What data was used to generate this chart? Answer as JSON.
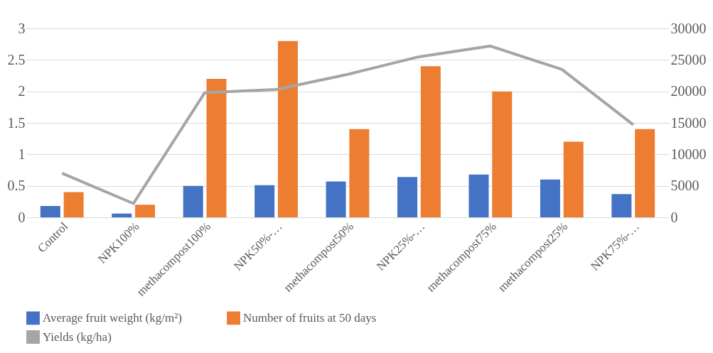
{
  "chart_data": {
    "type": "bar",
    "categories": [
      "Control",
      "NPK100%",
      "methacompost100%",
      "NPK50%-…",
      "methacompost50%",
      "NPK25%-…",
      "methacompost75%",
      "methacompost25%",
      "NPK75%-…"
    ],
    "series": [
      {
        "name": "Average fruit weight (kg/m²)",
        "color": "#4472c4",
        "values": [
          0.18,
          0.06,
          0.5,
          0.51,
          0.57,
          0.64,
          0.68,
          0.6,
          0.37
        ]
      },
      {
        "name": "Number of fruits at 50 days",
        "color": "#ed7d31",
        "values": [
          0.4,
          0.2,
          2.2,
          2.8,
          1.4,
          2.4,
          2.0,
          1.2,
          1.4
        ]
      },
      {
        "name": "Yields (kg/ha)",
        "color": "#a5a5a5",
        "type": "line",
        "axis": "y2",
        "values": [
          7000,
          2200,
          19800,
          20300,
          22700,
          25500,
          27200,
          23500,
          14700
        ]
      }
    ],
    "ylim": [
      0,
      3
    ],
    "yticks": [
      0,
      0.5,
      1,
      1.5,
      2,
      2.5,
      3
    ],
    "y2lim": [
      0,
      30000
    ],
    "y2ticks": [
      0,
      5000,
      10000,
      15000,
      20000,
      25000,
      30000
    ],
    "grid": "y",
    "legend": "bottom",
    "marker": "none",
    "line_style": "solid"
  }
}
